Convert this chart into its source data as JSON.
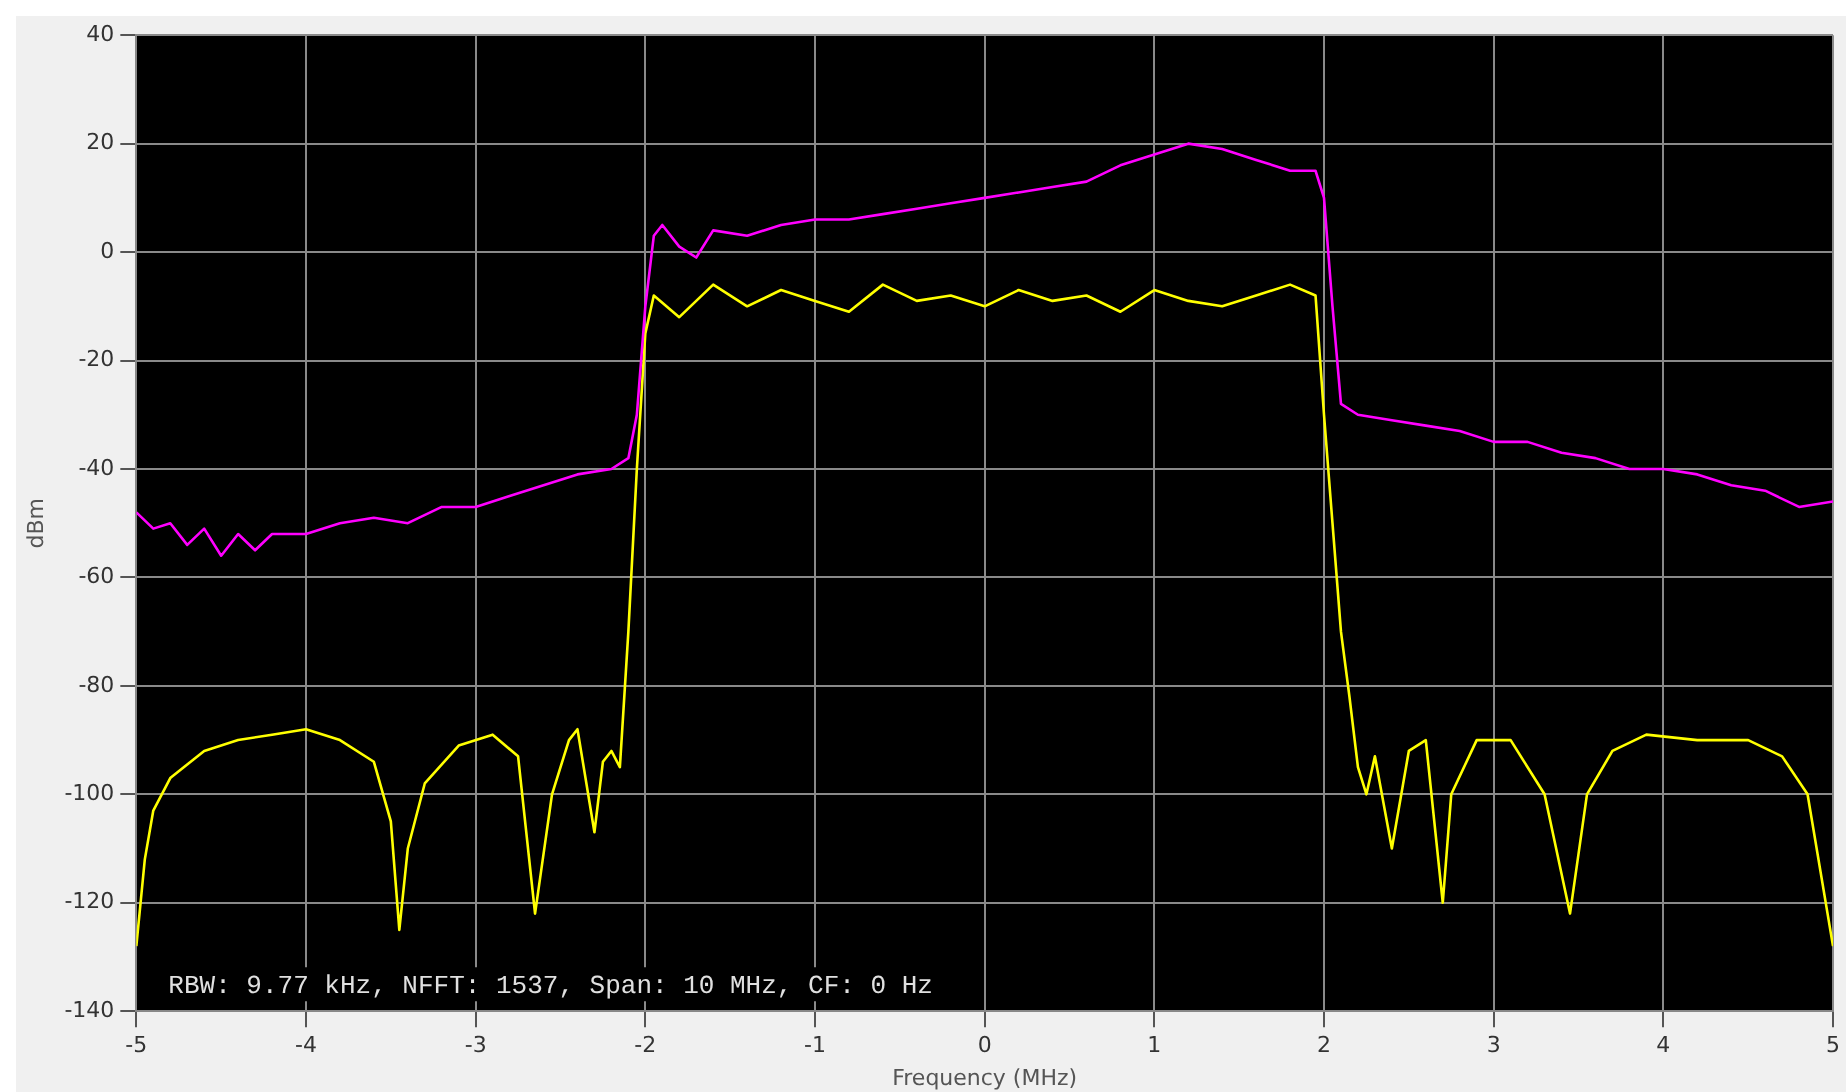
{
  "chart_data": {
    "type": "line",
    "xlabel": "Frequency (MHz)",
    "ylabel": "dBm",
    "annotations": [
      "RBW: 9.77 kHz, NFFT: 1537, Span: 10 MHz, CF: 0 Hz"
    ],
    "xlim": [
      -5,
      5
    ],
    "xticks": [
      -5,
      -4,
      -3,
      -2,
      -1,
      0,
      1,
      2,
      3,
      4,
      5
    ],
    "ylim": [
      -140,
      40
    ],
    "yticks": [
      -140,
      -120,
      -100,
      -80,
      -60,
      -40,
      -20,
      0,
      20,
      40
    ],
    "grid": true,
    "legend": false,
    "marker": "none",
    "line_style": "solid",
    "series": [
      {
        "color": "#ff00ff",
        "x": [
          -5,
          -4.9,
          -4.8,
          -4.7,
          -4.6,
          -4.5,
          -4.4,
          -4.3,
          -4.2,
          -4.0,
          -3.8,
          -3.6,
          -3.4,
          -3.2,
          -3.0,
          -2.8,
          -2.6,
          -2.4,
          -2.2,
          -2.1,
          -2.05,
          -2.0,
          -1.95,
          -1.9,
          -1.8,
          -1.7,
          -1.6,
          -1.4,
          -1.2,
          -1.0,
          -0.8,
          -0.6,
          -0.4,
          -0.2,
          0,
          0.2,
          0.4,
          0.6,
          0.8,
          1.0,
          1.2,
          1.4,
          1.6,
          1.8,
          1.95,
          2.0,
          2.05,
          2.1,
          2.2,
          2.4,
          2.6,
          2.8,
          3.0,
          3.2,
          3.4,
          3.6,
          3.8,
          4.0,
          4.2,
          4.4,
          4.6,
          4.8,
          5.0
        ],
        "values": [
          -48,
          -51,
          -50,
          -54,
          -51,
          -56,
          -52,
          -55,
          -52,
          -52,
          -50,
          -49,
          -50,
          -47,
          -47,
          -45,
          -43,
          -41,
          -40,
          -38,
          -30,
          -10,
          3,
          5,
          1,
          -1,
          4,
          3,
          5,
          6,
          6,
          7,
          8,
          9,
          10,
          11,
          12,
          13,
          16,
          18,
          20,
          19,
          17,
          15,
          15,
          10,
          -10,
          -28,
          -30,
          -31,
          -32,
          -33,
          -35,
          -35,
          -37,
          -38,
          -40,
          -40,
          -41,
          -43,
          -44,
          -47,
          -46
        ]
      },
      {
        "color": "#ffff00",
        "x": [
          -5,
          -4.95,
          -4.9,
          -4.8,
          -4.6,
          -4.4,
          -4.2,
          -4.0,
          -3.8,
          -3.6,
          -3.5,
          -3.45,
          -3.4,
          -3.3,
          -3.1,
          -2.9,
          -2.75,
          -2.65,
          -2.55,
          -2.45,
          -2.4,
          -2.3,
          -2.25,
          -2.2,
          -2.15,
          -2.1,
          -2.05,
          -2.0,
          -1.95,
          -1.8,
          -1.6,
          -1.4,
          -1.2,
          -1.0,
          -0.8,
          -0.6,
          -0.4,
          -0.2,
          0,
          0.2,
          0.4,
          0.6,
          0.8,
          1.0,
          1.2,
          1.4,
          1.6,
          1.8,
          1.95,
          2.0,
          2.05,
          2.1,
          2.15,
          2.2,
          2.25,
          2.3,
          2.4,
          2.5,
          2.6,
          2.7,
          2.75,
          2.9,
          3.1,
          3.3,
          3.45,
          3.55,
          3.7,
          3.9,
          4.2,
          4.5,
          4.7,
          4.85,
          5.0
        ],
        "values": [
          -128,
          -112,
          -103,
          -97,
          -92,
          -90,
          -89,
          -88,
          -90,
          -94,
          -105,
          -125,
          -110,
          -98,
          -91,
          -89,
          -93,
          -122,
          -100,
          -90,
          -88,
          -107,
          -94,
          -92,
          -95,
          -70,
          -40,
          -15,
          -8,
          -12,
          -6,
          -10,
          -7,
          -9,
          -11,
          -6,
          -9,
          -8,
          -10,
          -7,
          -9,
          -8,
          -11,
          -7,
          -9,
          -10,
          -8,
          -6,
          -8,
          -30,
          -50,
          -70,
          -82,
          -95,
          -100,
          -93,
          -110,
          -92,
          -90,
          -120,
          -100,
          -90,
          -90,
          -100,
          -122,
          -100,
          -92,
          -89,
          -90,
          -90,
          -93,
          -100,
          -128
        ]
      }
    ]
  }
}
